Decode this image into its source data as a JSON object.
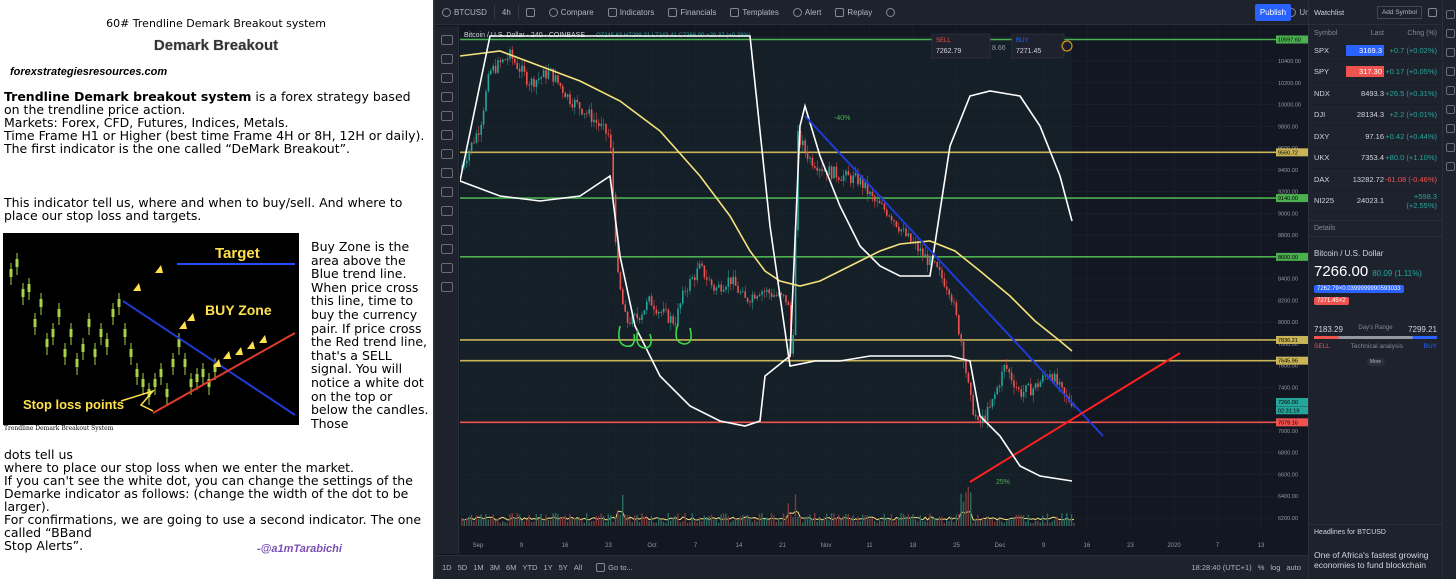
{
  "article": {
    "heading": "60# Trendline Demark Breakout system",
    "subheading": "Demark Breakout",
    "site": "forexstrategiesresources.com",
    "intro_bold": "Trendline Demark breakout system",
    "intro_rest": " is a forex strategy based on the trendline price action.",
    "markets": "Markets: Forex, CFD, Futures, Indices, Metals.",
    "timeframe": "Time Frame H1 or Higher (best time Frame 4H or 8H, 12H or daily).",
    "first_indicator": "The first indicator is the one called “DeMark Breakout”.",
    "indicator_tells": "This indicator tell us, where and when to buy/sell. And where to place our stop loss and targets.",
    "side_text": "Buy Zone is the area above the Blue trend line. When price cross this line, time to buy the currency pair. If price cross the Red trend line, that's a SELL signal. You will notice a white dot on the top or below the candles. Those",
    "continuation_1": "dots tell us",
    "continuation_2": "where to place our stop loss when we enter the market.",
    "continuation_3": "If you can't see the white dot, you can change the settings of the Demarke indicator as follows: (change the width of the dot to be larger).",
    "continuation_4": "For confirmations, we are going to use a second indicator. The one called “BBand",
    "continuation_5": "Stop Alerts”.",
    "handle": "-@a1mTarabichi",
    "image": {
      "target_label": "Target",
      "buy_zone_label": "BUY Zone",
      "stop_loss_label": "Stop loss points",
      "caption": "Trendline Demark Breakout System"
    }
  },
  "tradingview": {
    "toolbar": {
      "symbol": "BTCUSD",
      "interval": "4h",
      "compare": "Compare",
      "indicators": "Indicators",
      "financials": "Financials",
      "templates": "Templates",
      "alert": "Alert",
      "replay": "Replay",
      "unnamed": "Unnamed",
      "publish": "Publish"
    },
    "legend": {
      "title": "Bitcoin / U.S. Dollar",
      "interval": "240",
      "exchange": "COINBASE",
      "ohlc": "O7245.63 H7299.21 L7243.41 C7266.00 +20.37 (+0.28%)"
    },
    "trade": {
      "sell_label": "SELL",
      "sell_price": "7262.79",
      "spread": "8.66",
      "buy_label": "BUY",
      "buy_price": "7271.45"
    },
    "annotations": {
      "pct_top": "-40%",
      "pct_bottom": "25%"
    },
    "price_axis": [
      "10400.00",
      "10200.00",
      "10000.00",
      "9800.00",
      "9600.00",
      "9400.00",
      "9200.00",
      "9000.00",
      "8800.00",
      "8600.00",
      "8400.00",
      "8200.00",
      "8000.00",
      "7800.00",
      "7600.00",
      "7400.00",
      "7200.00",
      "7000.00",
      "6800.00",
      "6600.00",
      "6400.00",
      "6200.00"
    ],
    "price_tags": [
      {
        "text": "10597.60",
        "price": 10597.6,
        "color": "#4caf50"
      },
      {
        "text": "9560.72",
        "price": 9560.72,
        "color": "#c9b458"
      },
      {
        "text": "9140.00",
        "price": 9140,
        "color": "#4caf50"
      },
      {
        "text": "8600.00",
        "price": 8600,
        "color": "#4caf50"
      },
      {
        "text": "7836.21",
        "price": 7836.21,
        "color": "#c9b458"
      },
      {
        "text": "7645.96",
        "price": 7645.96,
        "color": "#c9b458"
      },
      {
        "text": "7266.00",
        "price": 7266,
        "color": "#26a69a"
      },
      {
        "text": "02:31:19",
        "price": 7190,
        "color": "#26a69a"
      },
      {
        "text": "7079.16",
        "price": 7079.16,
        "color": "#ef5350"
      }
    ],
    "date_axis": [
      "Sep",
      "9",
      "16",
      "23",
      "Oct",
      "7",
      "14",
      "21",
      "Nov",
      "11",
      "18",
      "25",
      "Dec",
      "9",
      "16",
      "23",
      "2020",
      "7",
      "13"
    ],
    "timeframes": [
      "1D",
      "5D",
      "1M",
      "3M",
      "6M",
      "YTD",
      "1Y",
      "5Y",
      "All"
    ],
    "goto": "Go to...",
    "clock": "18:28:40 (UTC+1)",
    "bottom_right": [
      "%",
      "log",
      "auto"
    ]
  },
  "watchlist": {
    "title": "Watchlist",
    "add_symbol": "Add Symbol",
    "columns": [
      "Symbol",
      "Last",
      "Chng (%)"
    ],
    "rows": [
      {
        "symbol": "SPX",
        "last": "3169.3",
        "change": "+0.7 (+0.02%)",
        "dir": "up",
        "badge": "#2962ff"
      },
      {
        "symbol": "SPY",
        "last": "317.30",
        "change": "+0.17 (+0.05%)",
        "dir": "up",
        "badge": "#ef5350"
      },
      {
        "symbol": "NDX",
        "last": "8493.3",
        "change": "+26.5 (+0.31%)",
        "dir": "up",
        "badge": ""
      },
      {
        "symbol": "DJI",
        "last": "28134.3",
        "change": "+2.2 (+0.01%)",
        "dir": "up",
        "badge": ""
      },
      {
        "symbol": "DXY",
        "last": "97.16",
        "change": "+0.42 (+0.44%)",
        "dir": "up",
        "badge": ""
      },
      {
        "symbol": "UKX",
        "last": "7353.4",
        "change": "+80.0 (+1.10%)",
        "dir": "up",
        "badge": ""
      },
      {
        "symbol": "DAX",
        "last": "13282.72",
        "change": "-61.08 (-0.46%)",
        "dir": "dn",
        "badge": ""
      },
      {
        "symbol": "NI225",
        "last": "24023.1",
        "change": "+598.3 (+2.55%)",
        "dir": "up",
        "badge": ""
      }
    ],
    "details_title": "Details",
    "detail_name": "Bitcoin / U.S. Dollar",
    "detail_price": "7266.00",
    "detail_change": "80.09 (1.11%)",
    "bid_pill": "7262.79×0.0399999990593033",
    "ask_pill": "7271.45×2",
    "day_low": "7183.29",
    "day_high": "7299.21",
    "day_range_label": "Day's Range",
    "sell": "SELL",
    "ta": "Technical analysis",
    "buy": "BUY",
    "more": "More",
    "headlines_title": "Headlines for BTCUSD",
    "headline": "One of Africa's fastest growing economies to fund blockchain"
  }
}
